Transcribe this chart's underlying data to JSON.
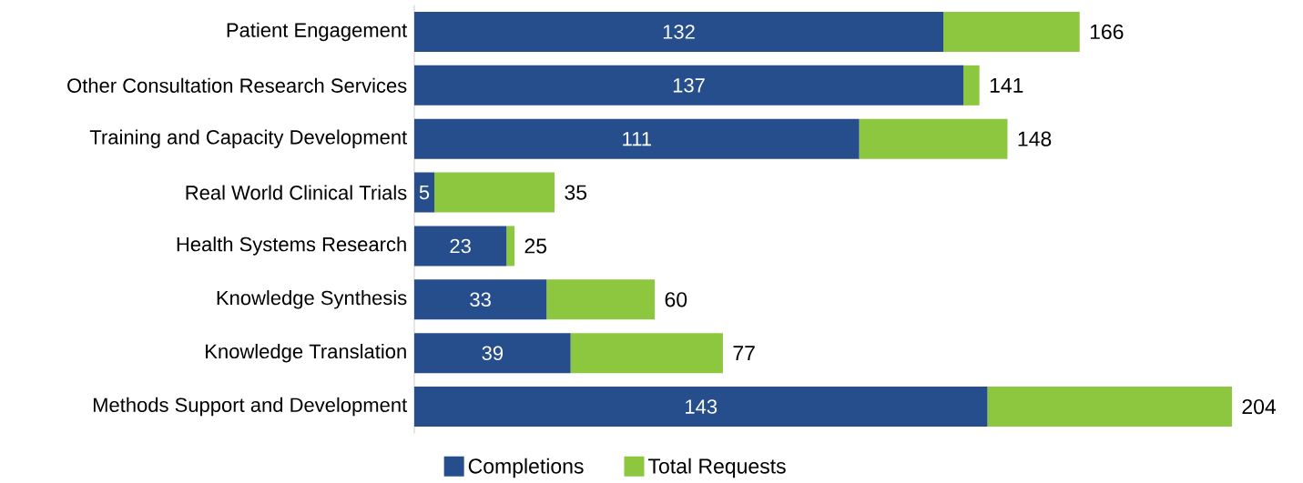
{
  "chart_data": {
    "type": "bar",
    "orientation": "horizontal",
    "stacked": true,
    "legend": "bottom",
    "tick_labels": "y",
    "categories": [
      "Patient Engagement",
      "Other Consultation Research Services",
      "Training and Capacity Development",
      "Real World Clinical Trials",
      "Health Systems Research",
      "Knowledge Synthesis",
      "Knowledge Translation",
      "Methods Support and Development"
    ],
    "series": [
      {
        "name": "Completions",
        "color": "#264d8c",
        "values": [
          132,
          137,
          111,
          5,
          23,
          33,
          39,
          143
        ],
        "value_labels": [
          "132",
          "137",
          "111",
          "5",
          "23",
          "33",
          "39",
          "143"
        ]
      },
      {
        "name": "Total Requests",
        "color": "#8dc63f",
        "values": [
          34,
          4,
          37,
          30,
          2,
          27,
          38,
          61
        ]
      }
    ],
    "totals": [
      "166",
      "141",
      "148",
      "35",
      "25",
      "60",
      "77",
      "204"
    ]
  }
}
